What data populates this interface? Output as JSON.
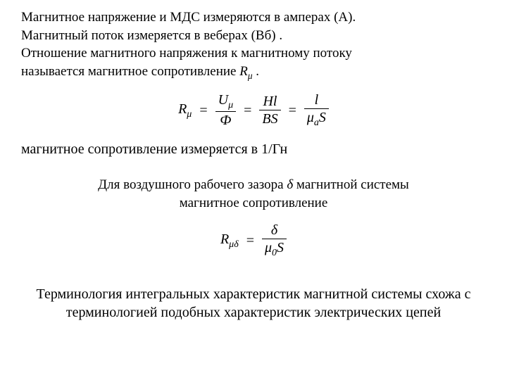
{
  "intro": {
    "line1": "Магнитное напряжение и МДС измеряются в амперах (А).",
    "line2": "Магнитный поток измеряется в веберах (Вб) .",
    "line3": "Отношение магнитного напряжения к магнитному потоку",
    "line4_prefix": "называется магнитное сопротивление ",
    "rmu_symbol": "R",
    "rmu_sub": "μ",
    "line4_suffix": "  ."
  },
  "formula1": {
    "lhs_R": "R",
    "lhs_sub": "μ",
    "eq1": " = ",
    "f1_num_U": "U",
    "f1_num_sub": "μ",
    "f1_den": "Ф",
    "eq2": "=",
    "f2_num": "Hl",
    "f2_den": "BS",
    "eq3": "=",
    "f3_num": "l",
    "f3_den_mu": "μ",
    "f3_den_a": "a",
    "f3_den_S": "S"
  },
  "measured": {
    "text": "магнитное сопротивление измеряется в  1/Гн"
  },
  "airgap": {
    "line1_prefix": "Для воздушного рабочего зазора   ",
    "delta": "δ",
    "line1_suffix": "   магнитной системы",
    "line2": "магнитное сопротивление"
  },
  "formula2": {
    "lhs_R": "R",
    "lhs_sub": "μδ",
    "eq": " = ",
    "num": "δ",
    "den_mu": "μ",
    "den_0": "0",
    "den_S": "S"
  },
  "terminology": {
    "text": "Терминология интегральных характеристик магнитной системы схожа с терминологией подобных характеристик электрических цепей"
  }
}
